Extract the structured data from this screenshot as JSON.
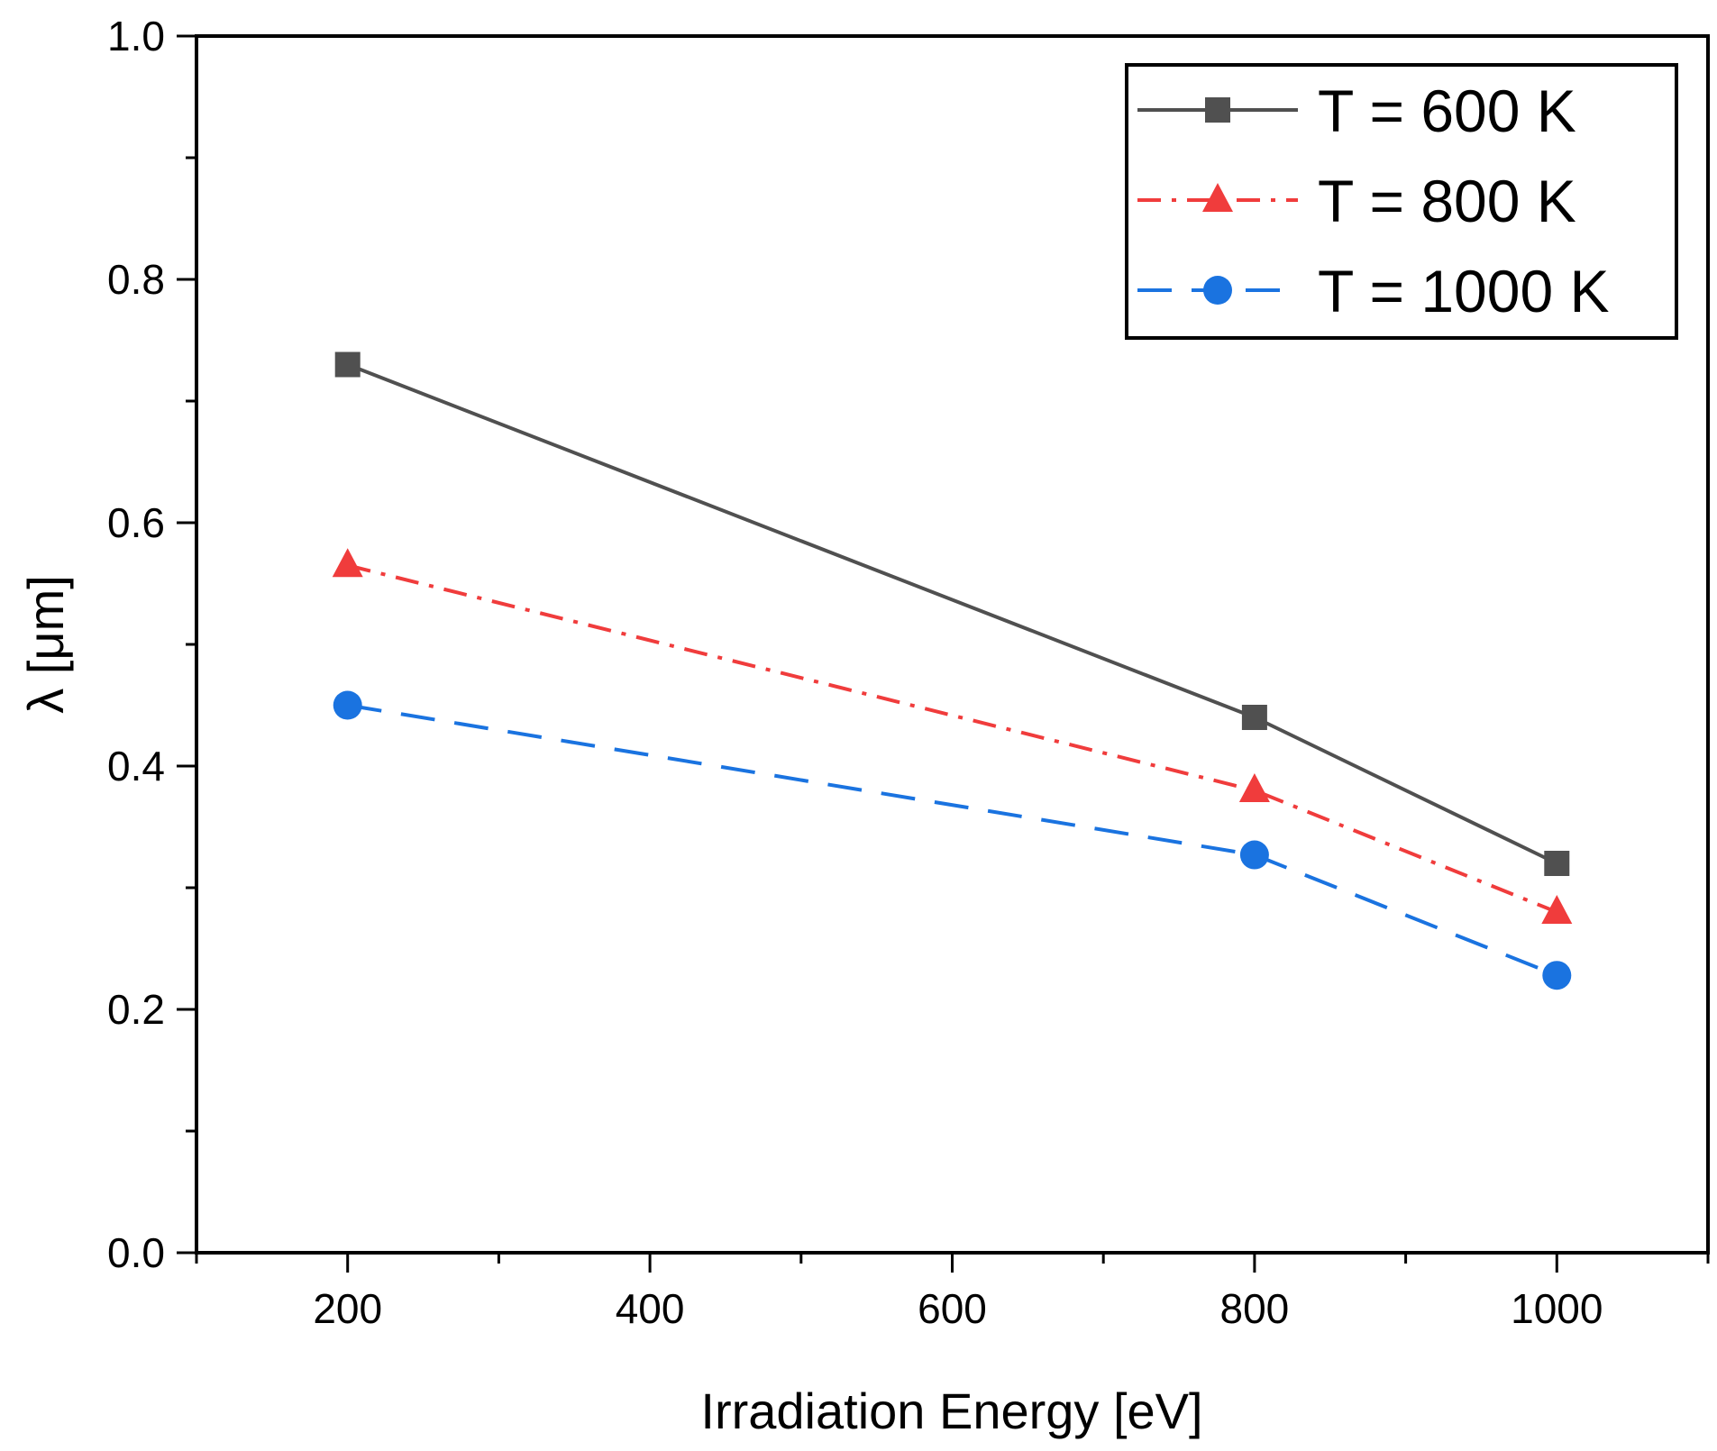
{
  "chart_data": {
    "type": "line",
    "title": "",
    "xlabel": "Irradiation Energy [eV]",
    "ylabel": "λ [μm]",
    "xlim": [
      100,
      1100
    ],
    "ylim": [
      0.0,
      1.0
    ],
    "x_ticks": [
      200,
      400,
      600,
      800,
      1000
    ],
    "x_tick_labels": [
      "200",
      "400",
      "600",
      "800",
      "1000"
    ],
    "y_ticks": [
      0.0,
      0.2,
      0.4,
      0.6,
      0.8,
      1.0
    ],
    "y_tick_labels": [
      "0.0",
      "0.2",
      "0.4",
      "0.6",
      "0.8",
      "1.0"
    ],
    "grid": false,
    "legend_position": "top-right",
    "series": [
      {
        "name": "T = 600 K",
        "color": "#505050",
        "line_style": "solid",
        "marker": "square",
        "x": [
          200,
          800,
          1000
        ],
        "values": [
          0.73,
          0.44,
          0.32
        ]
      },
      {
        "name": "T = 800 K",
        "color": "#f03c3c",
        "line_style": "dash-dot",
        "marker": "triangle",
        "x": [
          200,
          800,
          1000
        ],
        "values": [
          0.565,
          0.38,
          0.28
        ]
      },
      {
        "name": "T = 1000 K",
        "color": "#1a73e0",
        "line_style": "dashed",
        "marker": "circle",
        "x": [
          200,
          800,
          1000
        ],
        "values": [
          0.45,
          0.327,
          0.228
        ]
      }
    ]
  }
}
